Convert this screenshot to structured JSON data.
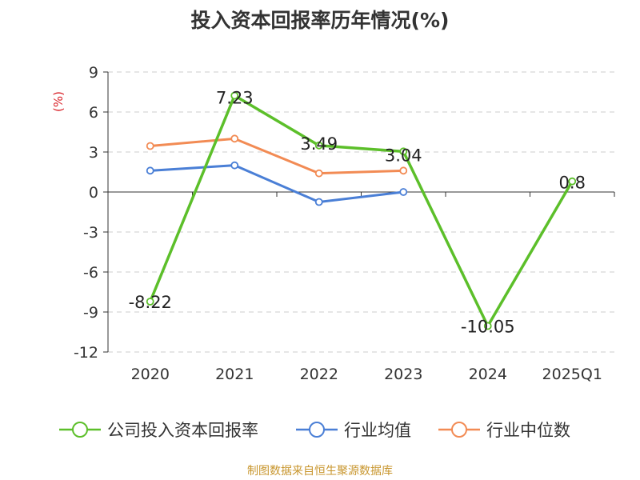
{
  "chart_data": {
    "type": "line",
    "title": "投入资本回报率历年情况(%)",
    "ylabel": "(%)",
    "xlabel": "",
    "categories": [
      "2020",
      "2021",
      "2022",
      "2023",
      "2024",
      "2025Q1"
    ],
    "ylim": [
      -12,
      9
    ],
    "yticks": [
      9,
      6,
      3,
      0,
      -3,
      -6,
      -9,
      -12
    ],
    "grid": true,
    "legend_position": "bottom",
    "series": [
      {
        "name": "公司投入资本回报率",
        "color": "#5cbf2a",
        "values": [
          -8.22,
          7.23,
          3.49,
          3.04,
          -10.05,
          0.8
        ],
        "labels": [
          "-8.22",
          "7.23",
          "3.49",
          "3.04",
          "-10.05",
          "0.8"
        ]
      },
      {
        "name": "行业均值",
        "color": "#4a7fd6",
        "values": [
          1.6,
          2.0,
          -0.75,
          0.0,
          null,
          null
        ]
      },
      {
        "name": "行业中位数",
        "color": "#f28b54",
        "values": [
          3.45,
          4.0,
          1.4,
          1.6,
          null,
          null
        ]
      }
    ]
  },
  "source": "制图数据来自恒生聚源数据库"
}
